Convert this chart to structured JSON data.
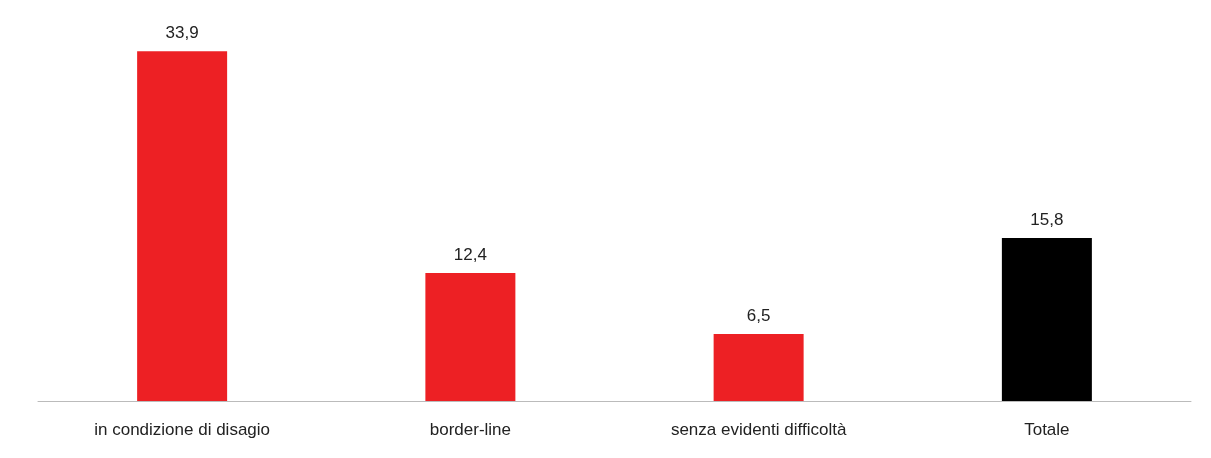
{
  "chart_data": {
    "type": "bar",
    "categories": [
      "in condizione di disagio",
      "border-line",
      "senza evidenti difficoltà",
      "Totale"
    ],
    "values": [
      33.9,
      12.4,
      6.5,
      15.8
    ],
    "value_labels": [
      "33,9",
      "12,4",
      "6,5",
      "15,8"
    ],
    "colors": [
      "#ed2024",
      "#ed2024",
      "#ed2024",
      "#000000"
    ],
    "grid": false
  }
}
